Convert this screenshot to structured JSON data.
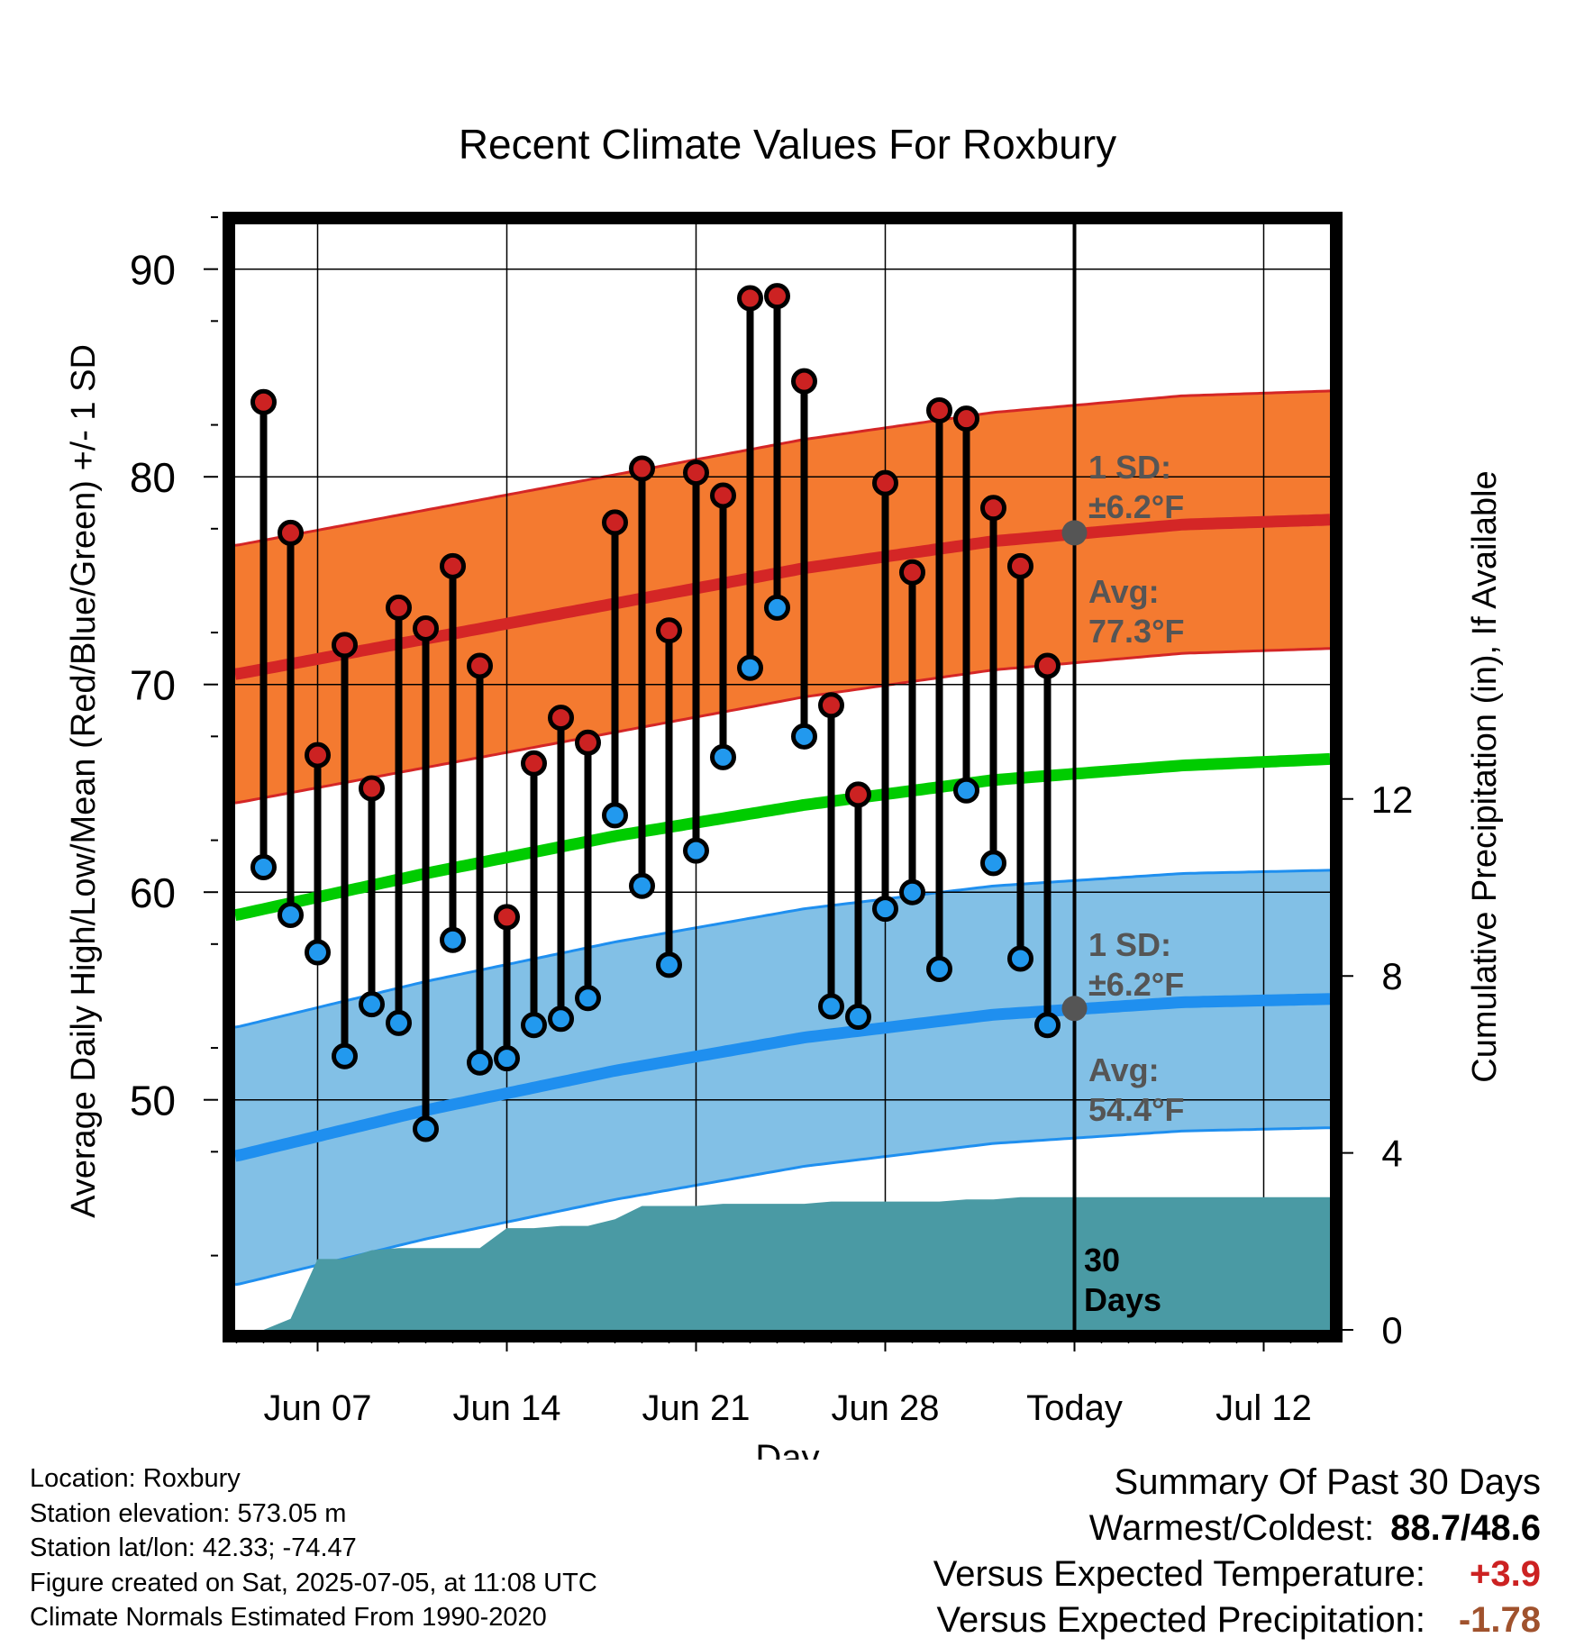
{
  "chart_data": {
    "type": "line",
    "title": "Recent Climate Values For Roxbury",
    "xlabel": "Day",
    "ylabel": "Average Daily High/Low/Mean (Red/Blue/Green) +/- 1 SD",
    "y2label": "Cumulative Precipitation (in), If Available",
    "x_tick_labels": [
      "Jun 07",
      "Jun 14",
      "Jun 21",
      "Jun 28",
      "Today",
      "Jul 12"
    ],
    "x_tick_dates": [
      "2025-06-07",
      "2025-06-14",
      "2025-06-21",
      "2025-06-28",
      "2025-07-05",
      "2025-07-12"
    ],
    "today": "2025-07-05",
    "ylim": [
      40,
      94
    ],
    "y_ticks": [
      50,
      60,
      70,
      80,
      90
    ],
    "y2lim": [
      0,
      30
    ],
    "y2_ticks": [
      0,
      4,
      8,
      12
    ],
    "grid": true,
    "observed": {
      "dates": [
        "2025-06-05",
        "2025-06-06",
        "2025-06-07",
        "2025-06-08",
        "2025-06-09",
        "2025-06-10",
        "2025-06-11",
        "2025-06-12",
        "2025-06-13",
        "2025-06-14",
        "2025-06-15",
        "2025-06-16",
        "2025-06-17",
        "2025-06-18",
        "2025-06-19",
        "2025-06-20",
        "2025-06-21",
        "2025-06-22",
        "2025-06-23",
        "2025-06-24",
        "2025-06-25",
        "2025-06-26",
        "2025-06-27",
        "2025-06-28",
        "2025-06-29",
        "2025-06-30",
        "2025-07-01",
        "2025-07-02",
        "2025-07-03",
        "2025-07-04"
      ],
      "high": [
        83.6,
        77.3,
        66.6,
        71.9,
        65.0,
        73.7,
        72.7,
        75.7,
        70.9,
        58.8,
        66.2,
        68.4,
        67.2,
        77.8,
        80.4,
        72.6,
        80.2,
        79.1,
        88.6,
        88.7,
        84.6,
        69.0,
        64.7,
        79.7,
        75.4,
        83.2,
        82.8,
        78.5,
        75.7,
        70.9
      ],
      "low": [
        61.2,
        58.9,
        57.1,
        52.1,
        54.6,
        53.7,
        48.6,
        57.7,
        51.8,
        52.0,
        53.6,
        53.9,
        54.9,
        63.7,
        60.3,
        56.5,
        62.0,
        66.5,
        70.8,
        73.7,
        67.5,
        54.5,
        54.0,
        59.2,
        60.0,
        56.3,
        64.9,
        61.4,
        56.8,
        53.6
      ]
    },
    "normals": {
      "dates": [
        "2025-06-04",
        "2025-06-11",
        "2025-06-18",
        "2025-06-25",
        "2025-07-02",
        "2025-07-09",
        "2025-07-16"
      ],
      "high_avg": [
        70.5,
        72.2,
        73.9,
        75.6,
        76.9,
        77.7,
        78.0
      ],
      "low_avg": [
        47.3,
        49.5,
        51.4,
        53.0,
        54.1,
        54.7,
        54.9
      ],
      "mean_avg": [
        58.9,
        60.9,
        62.7,
        64.2,
        65.4,
        66.1,
        66.5
      ],
      "high_sd": 6.2,
      "low_sd": 6.2
    },
    "today_markers": {
      "high": 77.3,
      "low": 54.4
    },
    "annotations": {
      "high_sd_line1": "1 SD:",
      "high_sd_line2": "±6.2°F",
      "high_avg_line1": "Avg:",
      "high_avg_line2": "77.3°F",
      "low_sd_line1": "1 SD:",
      "low_sd_line2": "±6.2°F",
      "low_avg_line1": "Avg:",
      "low_avg_line2": "54.4°F",
      "days_line1": "30",
      "days_line2": "Days"
    },
    "precipitation": {
      "dates": [
        "2025-06-04",
        "2025-06-05",
        "2025-06-06",
        "2025-06-07",
        "2025-06-08",
        "2025-06-09",
        "2025-06-10",
        "2025-06-11",
        "2025-06-12",
        "2025-06-13",
        "2025-06-14",
        "2025-06-15",
        "2025-06-16",
        "2025-06-17",
        "2025-06-18",
        "2025-06-19",
        "2025-06-20",
        "2025-06-21",
        "2025-06-22",
        "2025-06-23",
        "2025-06-24",
        "2025-06-25",
        "2025-06-26",
        "2025-06-27",
        "2025-06-28",
        "2025-06-29",
        "2025-06-30",
        "2025-07-01",
        "2025-07-02",
        "2025-07-03",
        "2025-07-04",
        "2025-07-16"
      ],
      "cumulative": [
        0.0,
        0.0,
        0.25,
        1.6,
        1.6,
        1.8,
        1.85,
        1.85,
        1.85,
        1.85,
        2.3,
        2.3,
        2.35,
        2.35,
        2.5,
        2.8,
        2.8,
        2.8,
        2.85,
        2.85,
        2.85,
        2.85,
        2.9,
        2.9,
        2.9,
        2.9,
        2.9,
        2.95,
        2.95,
        3.0,
        3.0,
        3.0
      ]
    },
    "colors": {
      "high_band": "#f47a30",
      "high_line": "#d42626",
      "low_band": "#82c0e6",
      "low_line": "#1f8fef",
      "mean_line": "#00cc00",
      "precip": "#4a9aa4",
      "high_dot": "#cc2222",
      "low_dot": "#2299ee",
      "marker_gray": "#555555",
      "annotation_gray": "#555555",
      "plus_red": "#cc2222",
      "minus_brown": "#a0522d"
    }
  },
  "info": {
    "location": "Location: Roxbury",
    "elevation": "Station elevation: 573.05 m",
    "latlon": "Station lat/lon: 42.33; -74.47",
    "created": "Figure created on Sat, 2025-07-05, at 11:08 UTC",
    "normals": "Climate Normals Estimated From 1990-2020"
  },
  "summary": {
    "title": "Summary Of Past 30 Days",
    "warm_cold_label": "Warmest/Coldest:",
    "warm_cold_value": "88.7/48.6",
    "temp_label": "Versus Expected Temperature:",
    "temp_value": "+3.9",
    "precip_label": "Versus Expected Precipitation:",
    "precip_value": "-1.78"
  }
}
